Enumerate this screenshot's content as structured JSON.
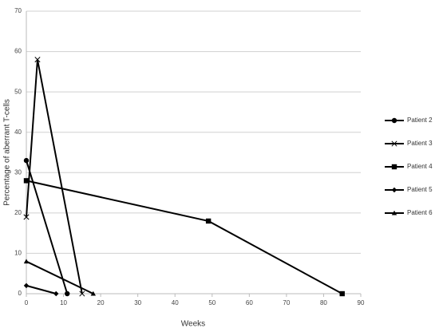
{
  "chart_data": {
    "type": "line",
    "x_label": "Weeks",
    "y_label": "Percentage of aberrant T-cells",
    "xlim": [
      0,
      90
    ],
    "xticks": [
      0,
      10,
      20,
      30,
      40,
      50,
      60,
      70,
      80,
      90
    ],
    "ylim": [
      0,
      70
    ],
    "yticks": [
      0,
      10,
      20,
      30,
      40,
      50,
      60,
      70
    ],
    "grid": true,
    "legend": "right",
    "series": [
      {
        "name": "Patient 2",
        "color": "#000000",
        "marker": "circle",
        "x": [
          0,
          11
        ],
        "values": [
          33,
          0
        ]
      },
      {
        "name": "Patient 3",
        "color": "#000000",
        "marker": "x",
        "x": [
          0,
          3,
          15
        ],
        "values": [
          19,
          58,
          0
        ]
      },
      {
        "name": "Patient 4",
        "color": "#000000",
        "marker": "square",
        "x": [
          0,
          49,
          85
        ],
        "values": [
          28,
          18,
          0
        ]
      },
      {
        "name": "Patient 5",
        "color": "#000000",
        "marker": "diamond",
        "x": [
          0,
          8
        ],
        "values": [
          2,
          0
        ]
      },
      {
        "name": "Patient 6",
        "color": "#000000",
        "marker": "triangle",
        "x": [
          0,
          18
        ],
        "values": [
          8,
          0
        ]
      }
    ]
  }
}
